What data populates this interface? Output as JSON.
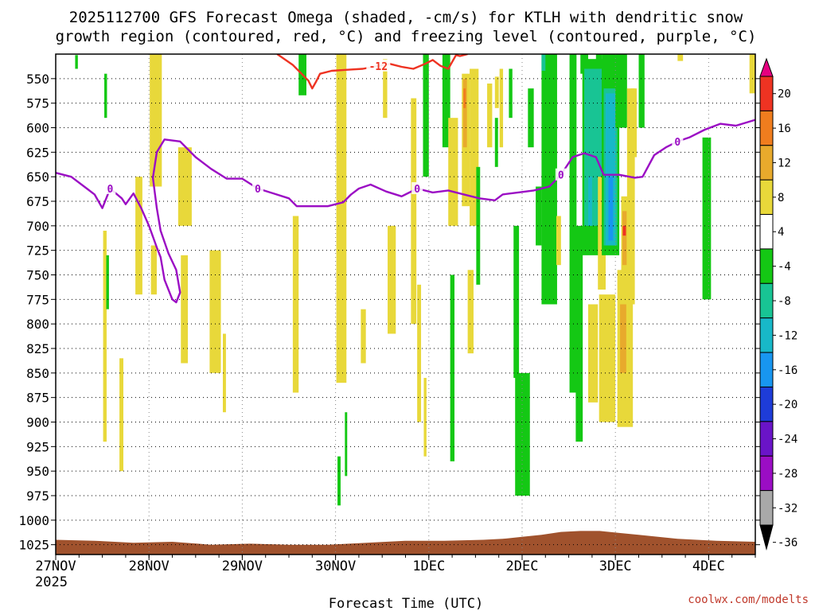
{
  "chart_data": {
    "type": "heatmap",
    "title_line1": "2025112700 GFS Forecast Omega (shaded, -cm/s) for KTLH with dendritic snow",
    "title_line2": "growth region (contoured, red, °C) and freezing level (contoured, purple, °C)",
    "xlabel": "Forecast Time (UTC)",
    "credit": "coolwx.com/modelts",
    "x_ticks": [
      {
        "label": "27NOV",
        "hour": 0
      },
      {
        "label": "28NOV",
        "hour": 24
      },
      {
        "label": "29NOV",
        "hour": 48
      },
      {
        "label": "30NOV",
        "hour": 72
      },
      {
        "label": "1DEC",
        "hour": 96
      },
      {
        "label": "2DEC",
        "hour": 120
      },
      {
        "label": "3DEC",
        "hour": 144
      },
      {
        "label": "4DEC",
        "hour": 168
      }
    ],
    "x_year_label": "2025",
    "xlim_hours": [
      0,
      180
    ],
    "y_ticks": [
      "550",
      "575",
      "600",
      "625",
      "650",
      "675",
      "700",
      "725",
      "750",
      "775",
      "800",
      "825",
      "850",
      "875",
      "900",
      "925",
      "950",
      "975",
      "1000",
      "1025"
    ],
    "ylim_hpa": [
      1035,
      525
    ],
    "grid": true,
    "colorbar": {
      "labels": [
        "20",
        "16",
        "12",
        "8",
        "4",
        "-4",
        "-8",
        "-12",
        "-16",
        "-20",
        "-24",
        "-28",
        "-32",
        "-36"
      ],
      "colors": [
        "#e60080",
        "#ee3322",
        "#f07d1e",
        "#e8aa2c",
        "#e8d83a",
        "#ffffff",
        "#14c814",
        "#18c494",
        "#18b8c8",
        "#1896f0",
        "#1e3cd8",
        "#6a14c8",
        "#9b0dc4",
        "#a9a9a9",
        "#000000"
      ]
    },
    "freezing_level": {
      "label": "0",
      "color": "#9b0dc4",
      "points": [
        [
          0,
          646
        ],
        [
          4,
          650
        ],
        [
          8,
          662
        ],
        [
          10,
          668
        ],
        [
          12,
          682
        ],
        [
          14,
          662
        ],
        [
          17,
          672
        ],
        [
          18,
          678
        ],
        [
          20,
          667
        ],
        [
          22,
          682
        ],
        [
          24,
          700
        ],
        [
          26,
          722
        ],
        [
          27,
          732
        ],
        [
          28,
          755
        ],
        [
          30,
          775
        ],
        [
          31,
          778
        ],
        [
          32,
          768
        ],
        [
          31,
          745
        ],
        [
          29,
          728
        ],
        [
          27,
          705
        ],
        [
          26,
          682
        ],
        [
          25,
          651
        ],
        [
          26,
          625
        ],
        [
          28,
          612
        ],
        [
          32,
          614
        ],
        [
          36,
          630
        ],
        [
          40,
          642
        ],
        [
          44,
          652
        ],
        [
          48,
          652
        ],
        [
          52,
          662
        ],
        [
          56,
          667
        ],
        [
          60,
          672
        ],
        [
          62,
          680
        ],
        [
          66,
          680
        ],
        [
          70,
          680
        ],
        [
          74,
          676
        ],
        [
          76,
          668
        ],
        [
          78,
          662
        ],
        [
          81,
          658
        ],
        [
          85,
          665
        ],
        [
          89,
          670
        ],
        [
          93,
          662
        ],
        [
          97,
          666
        ],
        [
          101,
          664
        ],
        [
          105,
          668
        ],
        [
          109,
          672
        ],
        [
          113,
          674
        ],
        [
          115,
          668
        ],
        [
          119,
          666
        ],
        [
          123,
          664
        ],
        [
          127,
          660
        ],
        [
          130,
          648
        ],
        [
          133,
          630
        ],
        [
          136,
          626
        ],
        [
          139,
          630
        ],
        [
          141,
          648
        ],
        [
          145,
          648
        ],
        [
          149,
          651
        ],
        [
          151,
          650
        ],
        [
          154,
          628
        ],
        [
          157,
          620
        ],
        [
          160,
          614
        ],
        [
          163,
          610
        ],
        [
          167,
          602
        ],
        [
          171,
          596
        ],
        [
          175,
          598
        ],
        [
          180,
          592
        ]
      ]
    },
    "dendritic_isotherm": {
      "label": "-12",
      "color": "#ee3322",
      "points": [
        [
          57,
          525
        ],
        [
          61,
          536
        ],
        [
          63,
          544
        ],
        [
          65,
          552
        ],
        [
          66,
          560
        ],
        [
          67,
          553
        ],
        [
          68,
          545
        ],
        [
          71,
          542
        ],
        [
          75,
          541
        ],
        [
          79,
          540
        ],
        [
          83,
          537
        ],
        [
          86,
          535
        ],
        [
          89,
          538
        ],
        [
          92,
          540
        ],
        [
          95,
          535
        ],
        [
          97,
          531
        ],
        [
          99,
          537
        ],
        [
          101,
          540
        ],
        [
          103,
          526
        ],
        [
          104,
          527
        ],
        [
          106,
          525
        ]
      ]
    },
    "shading_regions": [
      {
        "color": "#14c814",
        "t0": 5,
        "t1": 5.7,
        "p0": 526,
        "p1": 540
      },
      {
        "color": "#14c814",
        "t0": 12.5,
        "t1": 13.2,
        "p0": 545,
        "p1": 590
      },
      {
        "color": "#e8d83a",
        "t0": 12.2,
        "t1": 13.1,
        "p0": 705,
        "p1": 920
      },
      {
        "color": "#e8d83a",
        "t0": 16.4,
        "t1": 17.4,
        "p0": 835,
        "p1": 950
      },
      {
        "color": "#14c814",
        "t0": 13,
        "t1": 13.7,
        "p0": 730,
        "p1": 785
      },
      {
        "color": "#e8d83a",
        "t0": 24.2,
        "t1": 27.3,
        "p0": 525,
        "p1": 660
      },
      {
        "color": "#e8d83a",
        "t0": 20.5,
        "t1": 22.3,
        "p0": 650,
        "p1": 770
      },
      {
        "color": "#e8d83a",
        "t0": 24.5,
        "t1": 26,
        "p0": 720,
        "p1": 770
      },
      {
        "color": "#e8d83a",
        "t0": 31.5,
        "t1": 35,
        "p0": 620,
        "p1": 700
      },
      {
        "color": "#e8d83a",
        "t0": 32.2,
        "t1": 34,
        "p0": 730,
        "p1": 840
      },
      {
        "color": "#e8d83a",
        "t0": 39.6,
        "t1": 42.5,
        "p0": 725,
        "p1": 850
      },
      {
        "color": "#e8d83a",
        "t0": 43,
        "t1": 43.8,
        "p0": 810,
        "p1": 890
      },
      {
        "color": "#e8d83a",
        "t0": 61,
        "t1": 62.5,
        "p0": 690,
        "p1": 870
      },
      {
        "color": "#14c814",
        "t0": 62.5,
        "t1": 64.5,
        "p0": 525,
        "p1": 567
      },
      {
        "color": "#e8d83a",
        "t0": 72.2,
        "t1": 74.8,
        "p0": 525,
        "p1": 860
      },
      {
        "color": "#14c814",
        "t0": 72.5,
        "t1": 73.3,
        "p0": 935,
        "p1": 985
      },
      {
        "color": "#14c814",
        "t0": 74.4,
        "t1": 75,
        "p0": 890,
        "p1": 955
      },
      {
        "color": "#e8d83a",
        "t0": 78.5,
        "t1": 79.8,
        "p0": 785,
        "p1": 840
      },
      {
        "color": "#e8d83a",
        "t0": 84.2,
        "t1": 85.3,
        "p0": 530,
        "p1": 590
      },
      {
        "color": "#e8d83a",
        "t0": 85.4,
        "t1": 87.5,
        "p0": 700,
        "p1": 810
      },
      {
        "color": "#e8d83a",
        "t0": 91.4,
        "t1": 92.8,
        "p0": 570,
        "p1": 800
      },
      {
        "color": "#e8d83a",
        "t0": 93,
        "t1": 94,
        "p0": 760,
        "p1": 900
      },
      {
        "color": "#e8d83a",
        "t0": 94.7,
        "t1": 95.4,
        "p0": 855,
        "p1": 935
      },
      {
        "color": "#14c814",
        "t0": 94.5,
        "t1": 96,
        "p0": 525,
        "p1": 650
      },
      {
        "color": "#14c814",
        "t0": 99.5,
        "t1": 101.5,
        "p0": 525,
        "p1": 620
      },
      {
        "color": "#14c814",
        "t0": 101.5,
        "t1": 102.6,
        "p0": 750,
        "p1": 940
      },
      {
        "color": "#e8d83a",
        "t0": 101,
        "t1": 103.5,
        "p0": 590,
        "p1": 700
      },
      {
        "color": "#e8d83a",
        "t0": 104.5,
        "t1": 106.5,
        "p0": 545,
        "p1": 680
      },
      {
        "color": "#e8aa2c",
        "t0": 104.8,
        "t1": 105.8,
        "p0": 550,
        "p1": 620
      },
      {
        "color": "#f07d1e",
        "t0": 104.9,
        "t1": 105.5,
        "p0": 560,
        "p1": 580
      },
      {
        "color": "#e8d83a",
        "t0": 106,
        "t1": 107.5,
        "p0": 745,
        "p1": 830
      },
      {
        "color": "#e8d83a",
        "t0": 106.5,
        "t1": 108.8,
        "p0": 540,
        "p1": 700
      },
      {
        "color": "#14c814",
        "t0": 108.2,
        "t1": 109.2,
        "p0": 640,
        "p1": 760
      },
      {
        "color": "#e8d83a",
        "t0": 111,
        "t1": 112.3,
        "p0": 555,
        "p1": 620
      },
      {
        "color": "#e8d83a",
        "t0": 113,
        "t1": 114,
        "p0": 548,
        "p1": 580
      },
      {
        "color": "#14c814",
        "t0": 113,
        "t1": 113.8,
        "p0": 590,
        "p1": 640
      },
      {
        "color": "#e8d83a",
        "t0": 114.2,
        "t1": 115.1,
        "p0": 540,
        "p1": 620
      },
      {
        "color": "#14c814",
        "t0": 117.8,
        "t1": 119.2,
        "p0": 700,
        "p1": 855
      },
      {
        "color": "#14c814",
        "t0": 118.2,
        "t1": 122,
        "p0": 850,
        "p1": 975
      },
      {
        "color": "#14c814",
        "t0": 116.6,
        "t1": 117.5,
        "p0": 540,
        "p1": 590
      },
      {
        "color": "#14c814",
        "t0": 121.5,
        "t1": 123,
        "p0": 560,
        "p1": 620
      },
      {
        "color": "#14c814",
        "t0": 125,
        "t1": 129,
        "p0": 525,
        "p1": 780
      },
      {
        "color": "#14c814",
        "t0": 123.5,
        "t1": 125,
        "p0": 660,
        "p1": 720
      },
      {
        "color": "#18c494",
        "t0": 125,
        "t1": 126,
        "p0": 525,
        "p1": 542
      },
      {
        "color": "#e8d83a",
        "t0": 128.8,
        "t1": 130,
        "p0": 690,
        "p1": 740
      },
      {
        "color": "#14c814",
        "t0": 132.2,
        "t1": 134,
        "p0": 525,
        "p1": 870
      },
      {
        "color": "#14c814",
        "t0": 133.8,
        "t1": 135.6,
        "p0": 700,
        "p1": 920
      },
      {
        "color": "#14c814",
        "t0": 136.3,
        "t1": 138,
        "p0": 540,
        "p1": 610
      },
      {
        "color": "#14c814",
        "t0": 135,
        "t1": 137,
        "p0": 525,
        "p1": 545
      },
      {
        "color": "#14c814",
        "t0": 139,
        "t1": 140.5,
        "p0": 525,
        "p1": 560
      },
      {
        "color": "#e8d83a",
        "t0": 137,
        "t1": 139.5,
        "p0": 780,
        "p1": 880
      },
      {
        "color": "#14c814",
        "t0": 135.5,
        "t1": 141,
        "p0": 530,
        "p1": 730
      },
      {
        "color": "#18c494",
        "t0": 136,
        "t1": 140.5,
        "p0": 540,
        "p1": 700
      },
      {
        "color": "#18b8c8",
        "t0": 137,
        "t1": 138,
        "p0": 650,
        "p1": 700
      },
      {
        "color": "#e8d83a",
        "t0": 139.5,
        "t1": 141.5,
        "p0": 650,
        "p1": 765
      },
      {
        "color": "#e8d83a",
        "t0": 139.8,
        "t1": 144,
        "p0": 770,
        "p1": 900
      },
      {
        "color": "#14c814",
        "t0": 140.5,
        "t1": 145,
        "p0": 525,
        "p1": 730
      },
      {
        "color": "#18c494",
        "t0": 141,
        "t1": 144.5,
        "p0": 560,
        "p1": 720
      },
      {
        "color": "#18b8c8",
        "t0": 141.5,
        "t1": 144,
        "p0": 565,
        "p1": 720
      },
      {
        "color": "#1896f0",
        "t0": 142.2,
        "t1": 143.4,
        "p0": 650,
        "p1": 715
      },
      {
        "color": "#14c814",
        "t0": 144,
        "t1": 147,
        "p0": 525,
        "p1": 600
      },
      {
        "color": "#e8d83a",
        "t0": 144.5,
        "t1": 148.5,
        "p0": 745,
        "p1": 905
      },
      {
        "color": "#e8aa2c",
        "t0": 145.2,
        "t1": 146.8,
        "p0": 780,
        "p1": 850
      },
      {
        "color": "#e8d83a",
        "t0": 145.5,
        "t1": 147.2,
        "p0": 670,
        "p1": 760
      },
      {
        "color": "#e8aa2c",
        "t0": 145.8,
        "t1": 146.9,
        "p0": 685,
        "p1": 740
      },
      {
        "color": "#ee3322",
        "t0": 145.9,
        "t1": 146.7,
        "p0": 700,
        "p1": 710
      },
      {
        "color": "#e8d83a",
        "t0": 147,
        "t1": 149,
        "p0": 560,
        "p1": 780
      },
      {
        "color": "#e8d83a",
        "t0": 148,
        "t1": 149.5,
        "p0": 560,
        "p1": 630
      },
      {
        "color": "#14c814",
        "t0": 150,
        "t1": 151.5,
        "p0": 525,
        "p1": 600
      },
      {
        "color": "#e8d83a",
        "t0": 160,
        "t1": 161.4,
        "p0": 525,
        "p1": 532
      },
      {
        "color": "#14c814",
        "t0": 166.4,
        "t1": 168.6,
        "p0": 610,
        "p1": 775
      },
      {
        "color": "#e8d83a",
        "t0": 178.5,
        "t1": 180,
        "p0": 525,
        "p1": 565
      }
    ],
    "terrain": {
      "color": "#a0522d",
      "points": [
        [
          0,
          1020
        ],
        [
          10,
          1021
        ],
        [
          20,
          1023
        ],
        [
          30,
          1022
        ],
        [
          40,
          1025
        ],
        [
          50,
          1024
        ],
        [
          60,
          1025
        ],
        [
          70,
          1025
        ],
        [
          80,
          1023
        ],
        [
          90,
          1021
        ],
        [
          100,
          1021
        ],
        [
          110,
          1020
        ],
        [
          115,
          1019
        ],
        [
          120,
          1017
        ],
        [
          125,
          1015
        ],
        [
          130,
          1012
        ],
        [
          135,
          1011
        ],
        [
          140,
          1011
        ],
        [
          145,
          1013
        ],
        [
          150,
          1015
        ],
        [
          155,
          1017
        ],
        [
          160,
          1019
        ],
        [
          170,
          1021
        ],
        [
          180,
          1022
        ]
      ]
    }
  }
}
